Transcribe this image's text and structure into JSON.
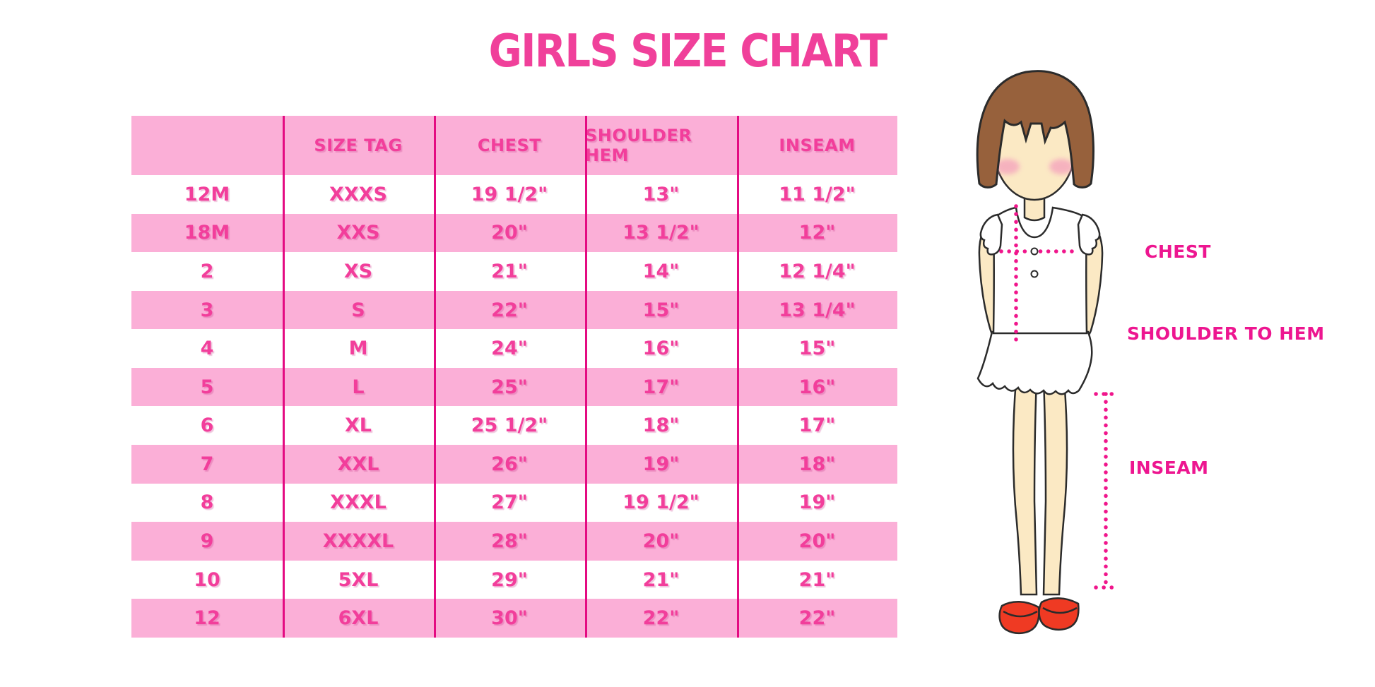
{
  "title": "GIRLS SIZE CHART",
  "colors": {
    "title": "#F0409A",
    "row_pink": "#FBAFD7",
    "cell_text": "#F23E9B",
    "divider": "#E40B82",
    "label": "#ED1690",
    "dotted": "#F0168C",
    "hair": "#97613C",
    "skin": "#FBE9C4",
    "blush": "#F5A9BE",
    "shoe": "#EF3A23",
    "outline": "#2B2B2B"
  },
  "chart_data": {
    "type": "table",
    "title": "GIRLS SIZE CHART",
    "columns": [
      "",
      "SIZE TAG",
      "CHEST",
      "SHOULDER HEM",
      "INSEAM"
    ],
    "rows": [
      [
        "12M",
        "XXXS",
        "19 1/2\"",
        "13\"",
        "11 1/2\""
      ],
      [
        "18M",
        "XXS",
        "20\"",
        "13 1/2\"",
        "12\""
      ],
      [
        "2",
        "XS",
        "21\"",
        "14\"",
        "12 1/4\""
      ],
      [
        "3",
        "S",
        "22\"",
        "15\"",
        "13 1/4\""
      ],
      [
        "4",
        "M",
        "24\"",
        "16\"",
        "15\""
      ],
      [
        "5",
        "L",
        "25\"",
        "17\"",
        "16\""
      ],
      [
        "6",
        "XL",
        "25 1/2\"",
        "18\"",
        "17\""
      ],
      [
        "7",
        "XXL",
        "26\"",
        "19\"",
        "18\""
      ],
      [
        "8",
        "XXXL",
        "27\"",
        "19 1/2\"",
        "19\""
      ],
      [
        "9",
        "XXXXL",
        "28\"",
        "20\"",
        "20\""
      ],
      [
        "10",
        "5XL",
        "29\"",
        "21\"",
        "21\""
      ],
      [
        "12",
        "6XL",
        "30\"",
        "22\"",
        "22\""
      ]
    ],
    "row_stripe_pattern": "alternating white/pink starting white",
    "legend_position": "none",
    "grid": "vertical column dividers only"
  },
  "figure": {
    "labels": {
      "chest": "CHEST",
      "shoulder_to_hem": "SHOULDER TO HEM",
      "inseam": "INSEAM"
    }
  }
}
